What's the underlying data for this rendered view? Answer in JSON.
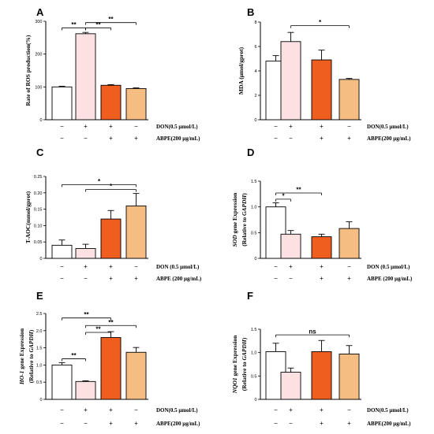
{
  "chart_data": [
    {
      "type": "bar",
      "panel": "A",
      "ylabel_parts": [
        {
          "t": "Rate of ROS production(%)",
          "i": false
        }
      ],
      "ylim": [
        0,
        300
      ],
      "yticks": [
        0,
        100,
        200,
        300
      ],
      "values": [
        100,
        262,
        105,
        95
      ],
      "errors": [
        2,
        4,
        2,
        2
      ],
      "treatment_labels": [
        "DON(0.5 μmol/L)",
        "ABPE(200 μg/mL)"
      ],
      "treatments": [
        [
          "−",
          "+",
          "+",
          "−"
        ],
        [
          "−",
          "−",
          "+",
          "+"
        ]
      ],
      "significance": [
        {
          "from": 0,
          "to": 1,
          "label": "**",
          "y": 280
        },
        {
          "from": 1,
          "to": 2,
          "label": "**",
          "y": 280
        },
        {
          "from": 1,
          "to": 3,
          "label": "**",
          "y": 296
        }
      ]
    },
    {
      "type": "bar",
      "panel": "B",
      "ylabel_parts": [
        {
          "t": "MDA (μmol/gprot)",
          "i": false
        }
      ],
      "ylim": [
        0,
        8
      ],
      "yticks": [
        0,
        2,
        4,
        6,
        8
      ],
      "values": [
        4.8,
        6.4,
        4.9,
        3.3
      ],
      "errors": [
        0.45,
        0.75,
        0.8,
        0.08
      ],
      "treatment_labels": [
        "DON(0.5 μmol/L)",
        "ABPE(200 μg/mL)"
      ],
      "treatments": [
        [
          "−",
          "+",
          "+",
          "−"
        ],
        [
          "−",
          "−",
          "+",
          "+"
        ]
      ],
      "significance": [
        {
          "from": 1,
          "to": 3,
          "label": "*",
          "y": 7.7
        }
      ]
    },
    {
      "type": "bar",
      "panel": "C",
      "ylabel_parts": [
        {
          "t": "T-AOC(mmol/gprot)",
          "i": false
        }
      ],
      "ylim": [
        0,
        0.25
      ],
      "yticks": [
        0,
        0.05,
        0.1,
        0.15,
        0.2,
        0.25
      ],
      "ytick_labels": [
        "0",
        "0.05",
        "0.10",
        "0.15",
        "0.20",
        "0.25"
      ],
      "values": [
        0.04,
        0.03,
        0.12,
        0.16
      ],
      "errors": [
        0.016,
        0.013,
        0.026,
        0.038
      ],
      "treatment_labels": [
        "DON (0.5 μmol/L)",
        "ABPE (200 μg/mL)"
      ],
      "treatments": [
        [
          "−",
          "+",
          "+",
          "−"
        ],
        [
          "−",
          "−",
          "+",
          "+"
        ]
      ],
      "significance": [
        {
          "from": 0,
          "to": 3,
          "label": "*",
          "y": 0.225
        },
        {
          "from": 1,
          "to": 3,
          "label": "*",
          "y": 0.21
        }
      ]
    },
    {
      "type": "bar",
      "panel": "D",
      "ylabel_parts": [
        {
          "t": "SOD",
          "i": true
        },
        {
          "t": " gene Expression",
          "i": false
        }
      ],
      "ylabel2_parts": [
        {
          "t": "(Relative to ",
          "i": false
        },
        {
          "t": "GAPDH",
          "i": true
        },
        {
          "t": ")",
          "i": false
        }
      ],
      "ylim": [
        0,
        1.5
      ],
      "yticks": [
        0,
        0.5,
        1.0,
        1.5
      ],
      "ytick_labels": [
        "0",
        "0.5",
        "1.0",
        "1.5"
      ],
      "values": [
        1.0,
        0.47,
        0.42,
        0.58
      ],
      "errors": [
        0.08,
        0.07,
        0.05,
        0.13
      ],
      "treatment_labels": [
        "DON (0.5 μmol/L)",
        "ABPE (200 μg/mL)"
      ],
      "treatments": [
        [
          "−",
          "+",
          "+",
          "−"
        ],
        [
          "−",
          "−",
          "+",
          "+"
        ]
      ],
      "significance": [
        {
          "from": 0,
          "to": 1,
          "label": "*",
          "y": 1.15
        },
        {
          "from": 0,
          "to": 2,
          "label": "**",
          "y": 1.27
        }
      ]
    },
    {
      "type": "bar",
      "panel": "E",
      "ylabel_parts": [
        {
          "t": "HO-1",
          "i": true
        },
        {
          "t": " gene Expression",
          "i": false
        }
      ],
      "ylabel2_parts": [
        {
          "t": "(Relative to ",
          "i": false
        },
        {
          "t": "GAPDH",
          "i": true
        },
        {
          "t": ")",
          "i": false
        }
      ],
      "ylim": [
        0,
        2.5
      ],
      "yticks": [
        0,
        0.5,
        1.0,
        1.5,
        2.0,
        2.5
      ],
      "ytick_labels": [
        "0",
        "0.5",
        "1.0",
        "1.5",
        "2.0",
        "2.5"
      ],
      "values": [
        1.0,
        0.52,
        1.8,
        1.37
      ],
      "errors": [
        0.07,
        0.02,
        0.17,
        0.14
      ],
      "treatment_labels": [
        "DON(0.5 μmol/L)",
        "ABPE(200 μg/mL)"
      ],
      "treatments": [
        [
          "−",
          "+",
          "+",
          "−"
        ],
        [
          "−",
          "−",
          "+",
          "+"
        ]
      ],
      "significance": [
        {
          "from": 0,
          "to": 1,
          "label": "**",
          "y": 1.18
        },
        {
          "from": 1,
          "to": 2,
          "label": "**",
          "y": 1.95
        },
        {
          "from": 1,
          "to": 3,
          "label": "**",
          "y": 2.15
        },
        {
          "from": 0,
          "to": 2,
          "label": "**",
          "y": 2.37
        }
      ]
    },
    {
      "type": "bar",
      "panel": "F",
      "ylabel_parts": [
        {
          "t": "NQO1",
          "i": true
        },
        {
          "t": " gene Expression",
          "i": false
        }
      ],
      "ylabel2_parts": [
        {
          "t": "(Relative to ",
          "i": false
        },
        {
          "t": "GAPDH",
          "i": true
        },
        {
          "t": ")",
          "i": false
        }
      ],
      "ylim": [
        0,
        1.5
      ],
      "yticks": [
        0,
        0.5,
        1.0,
        1.5
      ],
      "ytick_labels": [
        "0",
        "0.5",
        "1.0",
        "1.5"
      ],
      "values": [
        1.02,
        0.58,
        1.02,
        0.97
      ],
      "errors": [
        0.18,
        0.09,
        0.24,
        0.18
      ],
      "treatment_labels": [
        "DON(0.5 μmol/L)",
        "ABPE(200 μg/mL)"
      ],
      "treatments": [
        [
          "−",
          "+",
          "+",
          "−"
        ],
        [
          "−",
          "−",
          "+",
          "+"
        ]
      ],
      "significance": [
        {
          "from": 0,
          "to": 3,
          "label": "ns",
          "y": 1.38
        }
      ]
    }
  ],
  "colors": {
    "bars": [
      "#ffffff",
      "#fce1e3",
      "#ef5d1f",
      "#f6bd82"
    ],
    "stroke": "#000000"
  }
}
